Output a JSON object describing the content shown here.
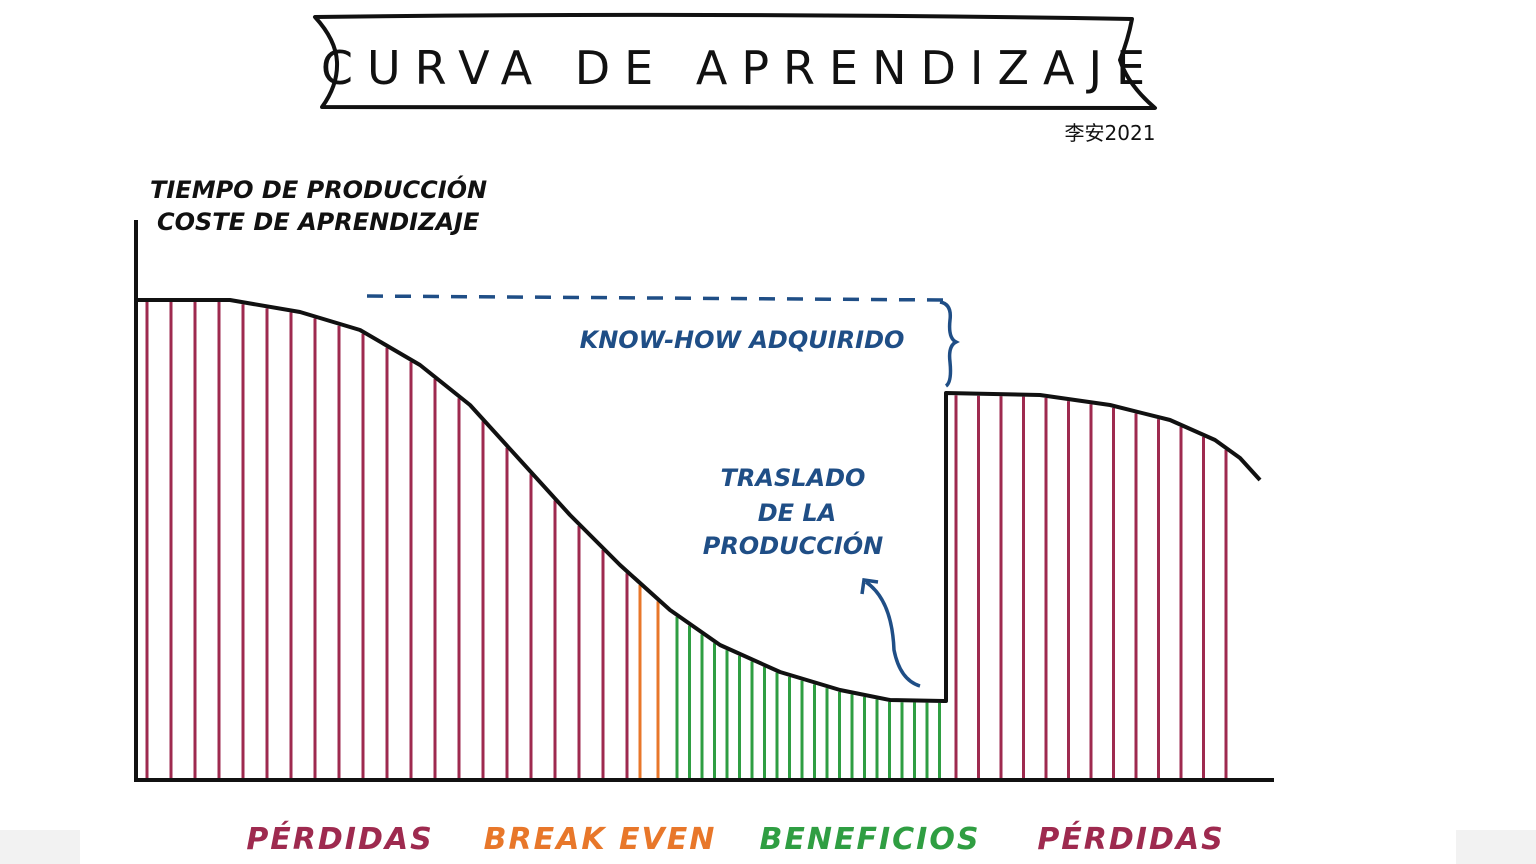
{
  "header": {
    "title": "CURVA DE APRENDIZAJE",
    "author": "李安2021"
  },
  "axis": {
    "y_label": [
      "TIEMPO DE PRODUCCIÓN",
      "COSTE DE APRENDIZAJE"
    ]
  },
  "annotations": {
    "know_how": "KNOW-HOW ADQUIRIDO",
    "relocation": [
      "TRASLADO",
      "DE LA",
      "PRODUCCIÓN"
    ]
  },
  "zones": [
    {
      "label": "PÉRDIDAS",
      "color": "#9e2a4f"
    },
    {
      "label": "BREAK EVEN",
      "color": "#e8772a"
    },
    {
      "label": "BENEFICIOS",
      "color": "#2f9e42"
    },
    {
      "label": "PÉRDIDAS",
      "color": "#9e2a4f"
    }
  ]
}
